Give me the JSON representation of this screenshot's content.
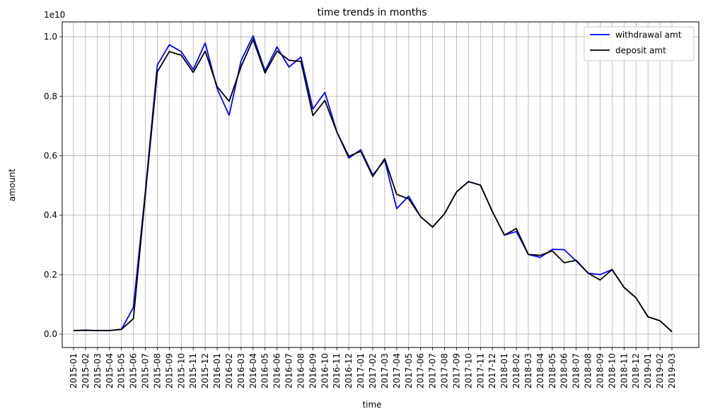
{
  "chart_data": {
    "type": "line",
    "title": "time trends in months",
    "xlabel": "time",
    "ylabel": "amount",
    "y_multiplier_label": "1e10",
    "ylim": [
      -0.045,
      1.05
    ],
    "yticks": [
      0.0,
      0.2,
      0.4,
      0.6,
      0.8,
      1.0
    ],
    "ytick_labels": [
      "0.0",
      "0.2",
      "0.4",
      "0.6",
      "0.8",
      "1.0"
    ],
    "grid": true,
    "legend_position": "top-right",
    "categories": [
      "2015-01",
      "2015-02",
      "2015-03",
      "2015-04",
      "2015-05",
      "2015-06",
      "2015-07",
      "2015-08",
      "2015-09",
      "2015-10",
      "2015-11",
      "2015-12",
      "2016-01",
      "2016-02",
      "2016-03",
      "2016-04",
      "2016-05",
      "2016-06",
      "2016-07",
      "2016-08",
      "2016-09",
      "2016-10",
      "2016-11",
      "2016-12",
      "2017-01",
      "2017-02",
      "2017-03",
      "2017-04",
      "2017-05",
      "2017-06",
      "2017-07",
      "2017-08",
      "2017-09",
      "2017-10",
      "2017-11",
      "2017-12",
      "2018-01",
      "2018-02",
      "2018-03",
      "2018-04",
      "2018-05",
      "2018-06",
      "2018-07",
      "2018-08",
      "2018-09",
      "2018-10",
      "2018-11",
      "2018-12",
      "2019-01",
      "2019-02",
      "2019-03"
    ],
    "series": [
      {
        "name": "withdrawal amt",
        "color": "#0000ff",
        "values": [
          0.012,
          0.013,
          0.012,
          0.012,
          0.016,
          0.09,
          0.48,
          0.905,
          0.973,
          0.95,
          0.89,
          0.979,
          0.825,
          0.736,
          0.92,
          1.003,
          0.885,
          0.966,
          0.898,
          0.932,
          0.757,
          0.813,
          0.68,
          0.592,
          0.62,
          0.535,
          0.585,
          0.422,
          0.464,
          0.395,
          0.36,
          0.405,
          0.478,
          0.513,
          0.501,
          0.412,
          0.333,
          0.345,
          0.268,
          0.258,
          0.285,
          0.284,
          0.246,
          0.205,
          0.2,
          0.217,
          0.157,
          0.122,
          0.058,
          0.045,
          0.008
        ]
      },
      {
        "name": "deposit amt",
        "color": "#000000",
        "values": [
          0.012,
          0.013,
          0.012,
          0.012,
          0.016,
          0.052,
          0.47,
          0.882,
          0.95,
          0.938,
          0.88,
          0.952,
          0.832,
          0.783,
          0.9,
          0.991,
          0.878,
          0.952,
          0.921,
          0.917,
          0.735,
          0.786,
          0.68,
          0.598,
          0.615,
          0.53,
          0.59,
          0.47,
          0.455,
          0.395,
          0.36,
          0.405,
          0.478,
          0.513,
          0.501,
          0.412,
          0.333,
          0.355,
          0.268,
          0.265,
          0.28,
          0.24,
          0.248,
          0.205,
          0.182,
          0.217,
          0.157,
          0.122,
          0.058,
          0.045,
          0.008
        ]
      }
    ]
  }
}
